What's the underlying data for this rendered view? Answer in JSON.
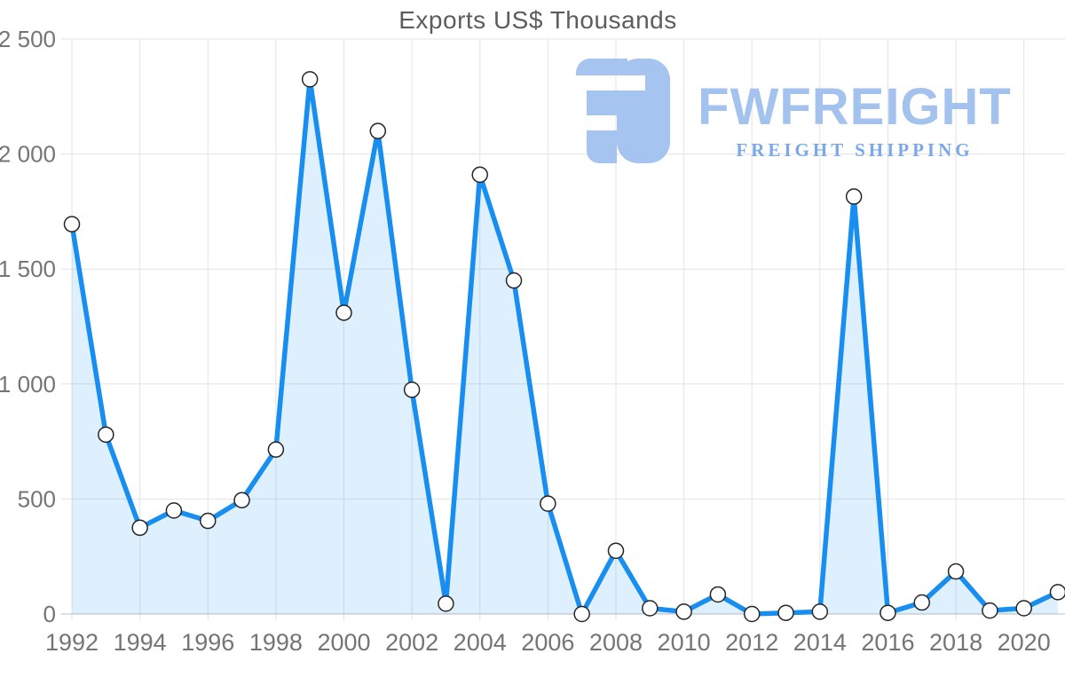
{
  "title": "Exports US$ Thousands",
  "watermark": {
    "brand": "FWFREIGHT",
    "tagline": "FREIGHT SHIPPING",
    "icon": "fwfreight-logo-icon",
    "icon_color": "#a6c4f0",
    "brand_color": "#a3c2ee",
    "tagline_color": "#7ca8e9"
  },
  "chart_data": {
    "type": "area",
    "title": "Exports US$ Thousands",
    "x": [
      1992,
      1993,
      1994,
      1995,
      1996,
      1997,
      1998,
      1999,
      2000,
      2001,
      2002,
      2003,
      2004,
      2005,
      2006,
      2007,
      2008,
      2009,
      2010,
      2011,
      2012,
      2013,
      2014,
      2015,
      2016,
      2017,
      2018,
      2019,
      2020,
      2021
    ],
    "values": [
      1695,
      780,
      375,
      450,
      405,
      495,
      715,
      2325,
      1310,
      2100,
      975,
      45,
      1910,
      1450,
      480,
      0,
      275,
      25,
      10,
      85,
      0,
      5,
      10,
      1815,
      5,
      50,
      185,
      15,
      25,
      95
    ],
    "xlabel": "",
    "ylabel": "",
    "ylim": [
      0,
      2500
    ],
    "y_ticks": [
      0,
      500,
      1000,
      1500,
      2000,
      2500
    ],
    "y_tick_labels": [
      "0",
      "500",
      "1 000",
      "1 500",
      "2 000",
      "2 500"
    ],
    "x_tick_labels": [
      "1992",
      "1994",
      "1996",
      "1998",
      "2000",
      "2002",
      "2004",
      "2006",
      "2008",
      "2010",
      "2012",
      "2014",
      "2016",
      "2018",
      "2020"
    ],
    "grid": true,
    "legend": "none",
    "line_color": "#178ef0",
    "area_fill": "rgba(24,143,240,0.14)",
    "grid_color": "#e3e3e3",
    "zero_line_color": "#bfbfbf",
    "axis_text_color": "#757575",
    "marker_fill": "#ffffff",
    "marker_stroke": "#262626"
  }
}
